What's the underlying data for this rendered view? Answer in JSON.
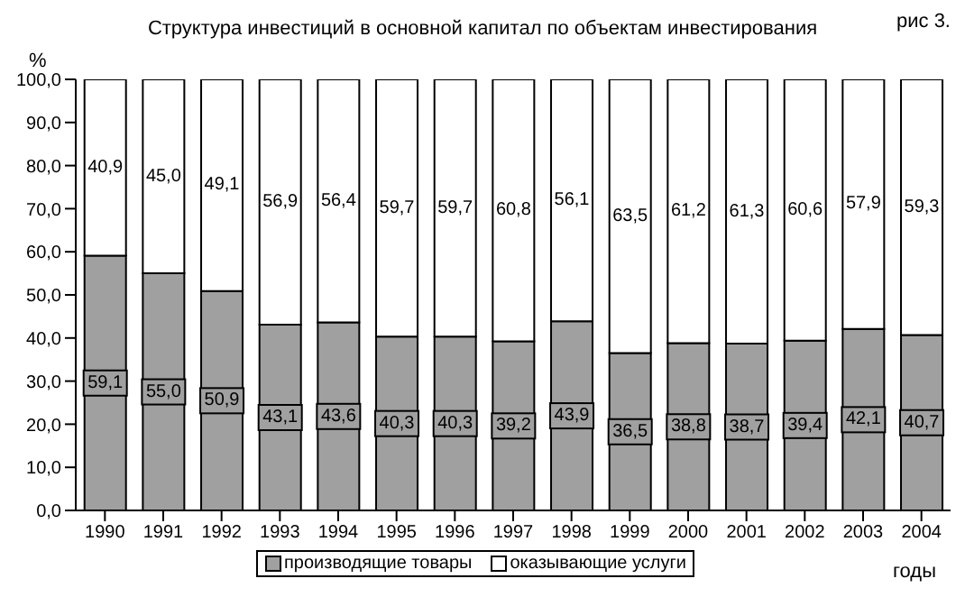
{
  "chart_data": {
    "type": "bar",
    "stacked": true,
    "title": "Структура инвестиций в основной капитал по объектам инвестирования",
    "xlabel": "годы",
    "ylabel": "%",
    "annotations": [
      "рис 3."
    ],
    "categories": [
      "1990",
      "1991",
      "1992",
      "1993",
      "1994",
      "1995",
      "1996",
      "1997",
      "1998",
      "1999",
      "2000",
      "2001",
      "2002",
      "2003",
      "2004"
    ],
    "series": [
      {
        "name": "производящие товары",
        "color": "#a0a0a0",
        "values": [
          59.1,
          55.0,
          50.9,
          43.1,
          43.6,
          40.3,
          40.3,
          39.2,
          43.9,
          36.5,
          38.8,
          38.7,
          39.4,
          42.1,
          40.7
        ],
        "value_labels": [
          "59,1",
          "55,0",
          "50,9",
          "43,1",
          "43,6",
          "40,3",
          "40,3",
          "39,2",
          "43,9",
          "36,5",
          "38,8",
          "38,7",
          "39,4",
          "42,1",
          "40,7"
        ]
      },
      {
        "name": "оказывающие услуги",
        "color": "#ffffff",
        "values": [
          40.9,
          45.0,
          49.1,
          56.9,
          56.4,
          59.7,
          59.7,
          60.8,
          56.1,
          63.5,
          61.2,
          61.3,
          60.6,
          57.9,
          59.3
        ],
        "value_labels": [
          "40,9",
          "45,0",
          "49,1",
          "56,9",
          "56,4",
          "59,7",
          "59,7",
          "60,8",
          "56,1",
          "63,5",
          "61,2",
          "61,3",
          "60,6",
          "57,9",
          "59,3"
        ]
      }
    ],
    "ylim": [
      0,
      100
    ],
    "yticks": [
      {
        "value": 0,
        "label": "0,0"
      },
      {
        "value": 10,
        "label": "10,0"
      },
      {
        "value": 20,
        "label": "20,0"
      },
      {
        "value": 30,
        "label": "30,0"
      },
      {
        "value": 40,
        "label": "40,0"
      },
      {
        "value": 50,
        "label": "50,0"
      },
      {
        "value": 60,
        "label": "60,0"
      },
      {
        "value": 70,
        "label": "70,0"
      },
      {
        "value": 80,
        "label": "80,0"
      },
      {
        "value": 90,
        "label": "90,0"
      },
      {
        "value": 100,
        "label": "100,0"
      }
    ],
    "grid": false,
    "legend": "bottom"
  }
}
